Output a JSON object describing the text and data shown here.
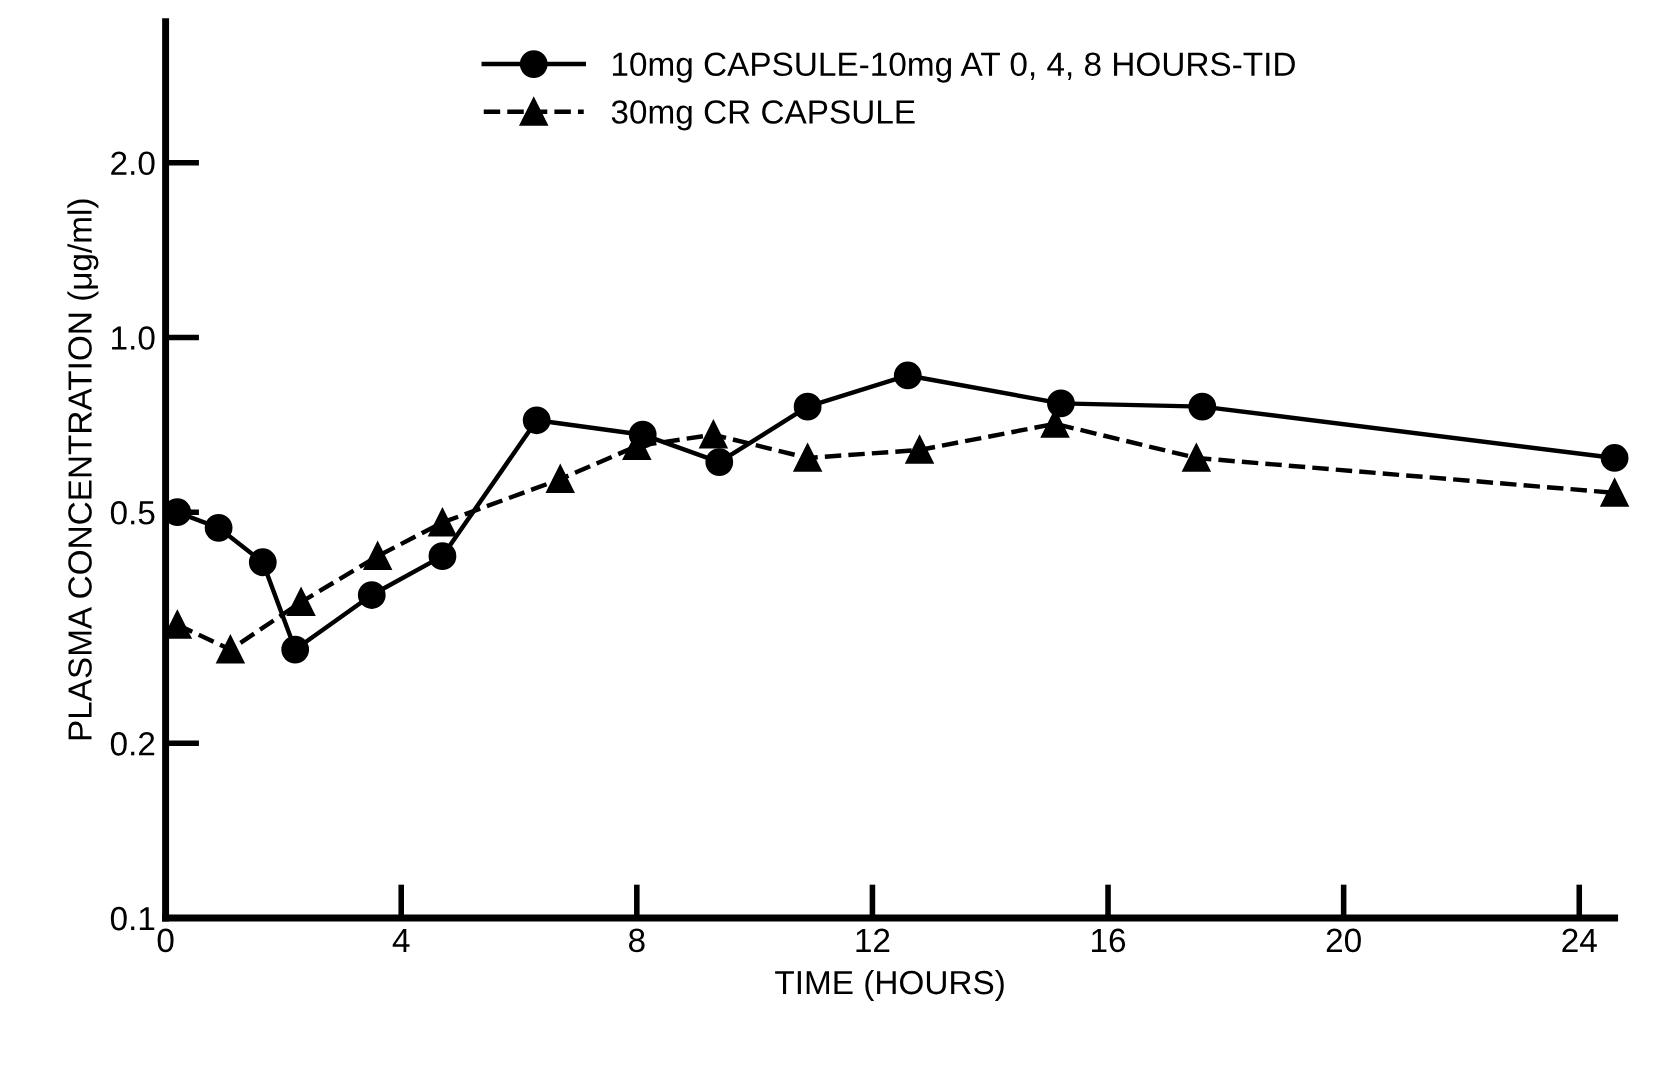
{
  "chart_data": {
    "type": "line",
    "xlabel": "TIME (HOURS)",
    "ylabel": "PLASMA CONCENTRATION (μg/ml)",
    "log": "y",
    "xlim": [
      0,
      24.6
    ],
    "xticks": [
      0,
      4,
      8,
      12,
      16,
      20,
      24
    ],
    "ylim": [
      0.1,
      3.5
    ],
    "yticks": [
      {
        "value": 0.1,
        "label": "0.1"
      },
      {
        "value": 0.2,
        "label": "0.2"
      },
      {
        "value": 0.5,
        "label": "0.5"
      },
      {
        "value": 1.0,
        "label": "1.0"
      },
      {
        "value": 2.0,
        "label": "2.0"
      }
    ],
    "grid": false,
    "legend": "top",
    "series": [
      {
        "name": "10mg CAPSULE-10mg AT 0, 4, 8 HOURS-TID",
        "color": "#000000",
        "marker": "circle",
        "line_style": "solid",
        "x": [
          0.2,
          0.9,
          1.65,
          2.2,
          3.5,
          4.7,
          6.3,
          8.1,
          9.4,
          10.9,
          12.6,
          15.2,
          17.6,
          24.6
        ],
        "values": [
          0.5,
          0.47,
          0.41,
          0.29,
          0.36,
          0.42,
          0.72,
          0.68,
          0.61,
          0.76,
          0.86,
          0.77,
          0.76,
          0.62
        ]
      },
      {
        "name": "30mg CR CAPSULE",
        "color": "#000000",
        "marker": "triangle",
        "line_style": "dashed",
        "x": [
          0.2,
          1.1,
          2.3,
          3.6,
          4.7,
          6.7,
          8.0,
          9.3,
          10.9,
          12.8,
          15.1,
          17.5,
          24.6
        ],
        "values": [
          0.32,
          0.29,
          0.35,
          0.42,
          0.48,
          0.57,
          0.65,
          0.68,
          0.62,
          0.64,
          0.71,
          0.62,
          0.54
        ]
      }
    ]
  }
}
